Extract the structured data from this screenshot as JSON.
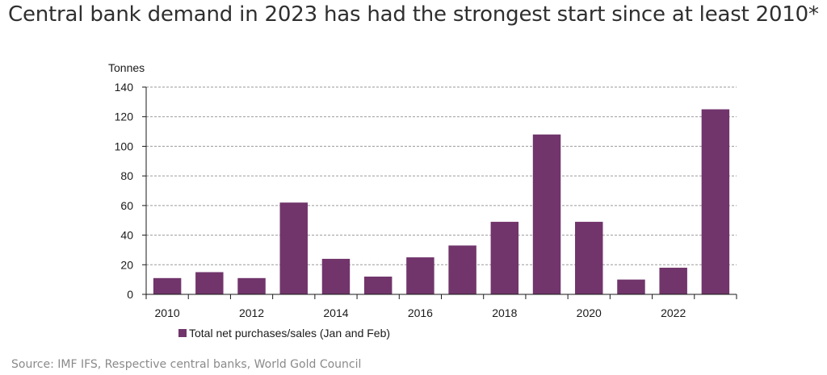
{
  "title": "Central bank demand in 2023 has had the strongest start since at least 2010*",
  "source": "Source: IMF IFS, Respective central banks, World Gold Council",
  "colors": {
    "bar": "#71356b",
    "grid": "#9a9a9a",
    "axis": "#1a1a1a"
  },
  "chart_data": {
    "type": "bar",
    "ylabel": "Tonnes",
    "ylim": [
      0,
      140
    ],
    "yticks": [
      0,
      20,
      40,
      60,
      80,
      100,
      120,
      140
    ],
    "grid": true,
    "legend_position": "bottom",
    "categories": [
      "2010",
      "2011",
      "2012",
      "2013",
      "2014",
      "2015",
      "2016",
      "2017",
      "2018",
      "2019",
      "2020",
      "2021",
      "2022",
      "2023"
    ],
    "xtick_labels": [
      "2010",
      "2012",
      "2014",
      "2016",
      "2018",
      "2020",
      "2022"
    ],
    "series": [
      {
        "name": "Total net purchases/sales (Jan and Feb)",
        "values": [
          11,
          15,
          11,
          62,
          24,
          12,
          25,
          33,
          49,
          108,
          49,
          10,
          18,
          125
        ]
      }
    ]
  }
}
